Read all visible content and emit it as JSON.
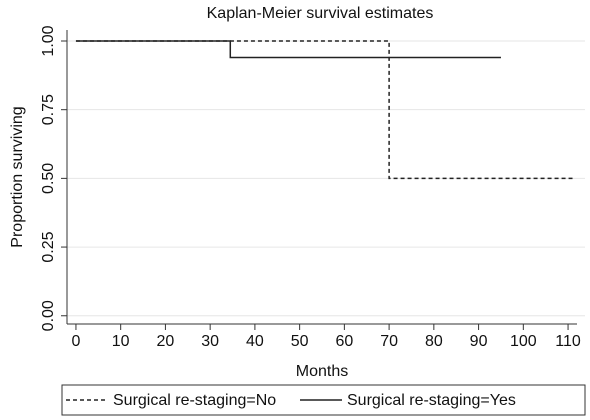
{
  "chart_data": {
    "type": "step",
    "title": "Kaplan-Meier survival estimates",
    "x_label": "Months",
    "y_label": "Proportion surviving",
    "xlim": [
      -2,
      112
    ],
    "xticks": [
      0,
      10,
      20,
      30,
      40,
      50,
      60,
      70,
      80,
      90,
      100,
      110
    ],
    "ylim": [
      -0.03,
      1.04
    ],
    "yticks": [
      {
        "value": 0,
        "label": "0.00"
      },
      {
        "value": 0.25,
        "label": "0.25"
      },
      {
        "value": 0.5,
        "label": "0.50"
      },
      {
        "value": 0.75,
        "label": "0.75"
      },
      {
        "value": 1,
        "label": "1.00"
      }
    ],
    "grid": true,
    "legend": "bottom",
    "series": [
      {
        "name": "Surgical re-staging=No",
        "color": "#222222",
        "dash": "dashed",
        "x": [
          0,
          70,
          111
        ],
        "values": [
          1,
          0.5,
          0.5
        ]
      },
      {
        "name": "Surgical re-staging=Yes",
        "color": "#222222",
        "dash": "solid",
        "x": [
          0,
          34.5,
          95
        ],
        "values": [
          1,
          0.94,
          0.94
        ]
      }
    ]
  }
}
